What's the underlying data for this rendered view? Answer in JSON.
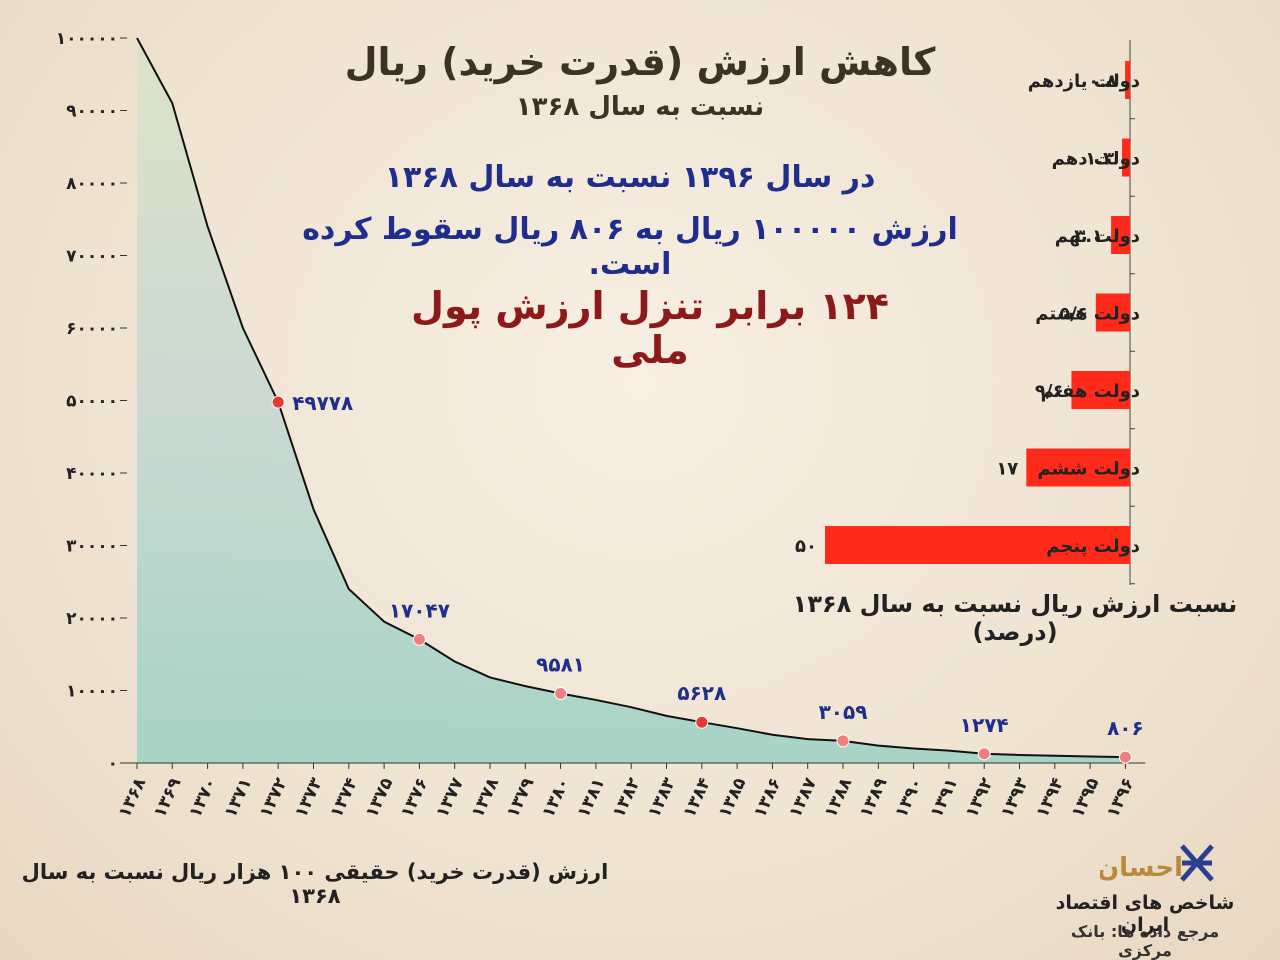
{
  "header": {
    "title": "کاهش ارزش (قدرت خرید) ریال",
    "subtitle": "نسبت به سال ۱۳۶۸",
    "note_line1": "در سال ۱۳۹۶ نسبت به سال ۱۳۶۸",
    "note_line2": "ارزش ۱۰۰۰۰۰ ریال به ۸۰۶ ریال سقوط کرده است.",
    "note_line3": "۱۲۴ برابر تنزل ارزش پول ملی"
  },
  "footer": {
    "line_caption": "ارزش (قدرت خرید) حقیقی ۱۰۰ هزار ریال نسبت به سال ۱۳۶۸",
    "brand_name": "شاخص های اقتصاد ایران",
    "brand_source": "مرجع داده ها: بانک مرکزی",
    "logo_text": "احسان",
    "logo_icon": "ehsan-logo-icon"
  },
  "colors": {
    "line": "#111111",
    "marker": "#e53935",
    "marker_light": "#ef7f7f",
    "bar": "#ff2a1a",
    "annotation": "#1f2e8c",
    "banknote_fill": "#9fd2c4"
  },
  "chart_data": [
    {
      "type": "line",
      "x": [
        "۱۳۶۸",
        "۱۳۶۹",
        "۱۳۷۰",
        "۱۳۷۱",
        "۱۳۷۲",
        "۱۳۷۳",
        "۱۳۷۴",
        "۱۳۷۵",
        "۱۳۷۶",
        "۱۳۷۷",
        "۱۳۷۸",
        "۱۳۷۹",
        "۱۳۸۰",
        "۱۳۸۱",
        "۱۳۸۲",
        "۱۳۸۳",
        "۱۳۸۴",
        "۱۳۸۵",
        "۱۳۸۶",
        "۱۳۸۷",
        "۱۳۸۸",
        "۱۳۸۹",
        "۱۳۹۰",
        "۱۳۹۱",
        "۱۳۹۲",
        "۱۳۹۳",
        "۱۳۹۴",
        "۱۳۹۵",
        "۱۳۹۶"
      ],
      "values": [
        100000,
        91000,
        74000,
        60000,
        49778,
        35000,
        24000,
        19500,
        17047,
        14000,
        11800,
        10600,
        9581,
        8700,
        7700,
        6500,
        5628,
        4800,
        3900,
        3300,
        3059,
        2400,
        2000,
        1700,
        1274,
        1100,
        1000,
        900,
        806
      ],
      "ytick_labels": [
        "۰",
        "۱۰۰۰۰",
        "۲۰۰۰۰",
        "۳۰۰۰۰",
        "۴۰۰۰۰",
        "۵۰۰۰۰",
        "۶۰۰۰۰",
        "۷۰۰۰۰",
        "۸۰۰۰۰",
        "۹۰۰۰۰",
        "۱۰۰۰۰۰"
      ],
      "ylim": [
        0,
        100000
      ],
      "annotations": [
        {
          "x_index": 4,
          "label": "۴۹۷۷۸"
        },
        {
          "x_index": 8,
          "label": "۱۷۰۴۷"
        },
        {
          "x_index": 12,
          "label": "۹۵۸۱"
        },
        {
          "x_index": 16,
          "label": "۵۶۲۸"
        },
        {
          "x_index": 20,
          "label": "۳۰۵۹"
        },
        {
          "x_index": 24,
          "label": "۱۲۷۴"
        },
        {
          "x_index": 28,
          "label": "۸۰۶"
        }
      ],
      "grid": false
    },
    {
      "type": "bar",
      "orientation": "horizontal",
      "categories": [
        "دولت یازدهم",
        "دولت دهم",
        "دولت نهم",
        "دولت هشتم",
        "دولت هفتم",
        "دولت ششم",
        "دولت پنجم"
      ],
      "values": [
        0.8,
        1.3,
        3.1,
        5.6,
        9.6,
        17,
        50
      ],
      "value_labels": [
        "۰.۸",
        "۱.۳",
        "۳.۱",
        "۵/۶",
        "۹/۶",
        "۱۷",
        "۵۰"
      ],
      "xlim": [
        0,
        50
      ],
      "xlabel": "نسبت ارزش ریال نسبت به سال ۱۳۶۸ (درصد)"
    }
  ]
}
